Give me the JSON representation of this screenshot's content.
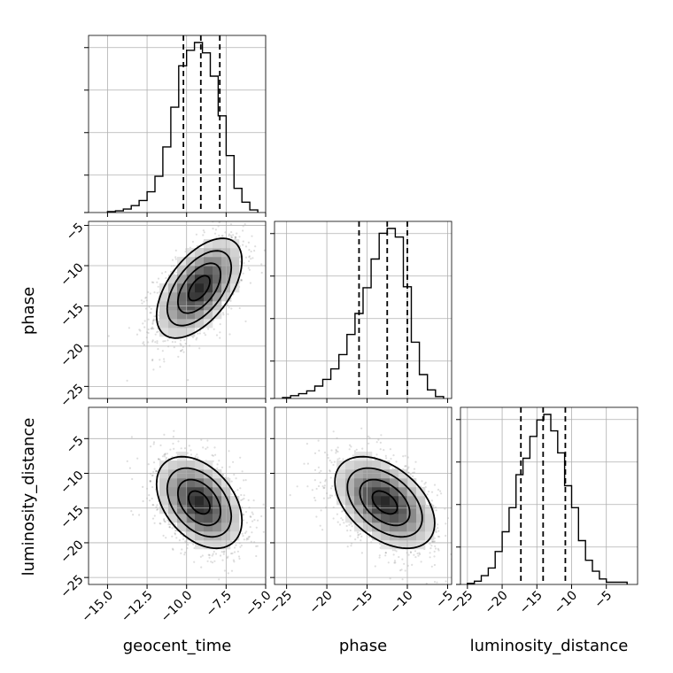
{
  "chart_data": {
    "type": "corner",
    "parameters": [
      "geocent_time",
      "phase",
      "luminosity_distance"
    ],
    "ranges": {
      "geocent_time": [
        -16.2,
        -5.0
      ],
      "phase": [
        -26.5,
        -4.5
      ],
      "luminosity_distance": [
        -26.0,
        -0.5
      ]
    },
    "ticks": {
      "geocent_time": [
        "-15.0",
        "-12.5",
        "-10.0",
        "-7.5",
        "-5.0"
      ],
      "phase": [
        "-25",
        "-20",
        "-15",
        "-10",
        "-5"
      ],
      "luminosity_distance": [
        "-25",
        "-20",
        "-15",
        "-10",
        "-5"
      ]
    },
    "quantiles": {
      "geocent_time": [
        -10.2,
        -9.1,
        -7.9
      ],
      "phase": [
        -16.0,
        -12.5,
        -10.0
      ],
      "luminosity_distance": [
        -17.3,
        -14.1,
        -10.9
      ]
    },
    "histograms": {
      "geocent_time": {
        "edges": [
          -15.0,
          -14.5,
          -14.0,
          -13.5,
          -13.0,
          -12.5,
          -12.0,
          -11.5,
          -11.0,
          -10.5,
          -10.0,
          -9.5,
          -9.0,
          -8.5,
          -8.0,
          -7.5,
          -7.0,
          -6.5,
          -6.0,
          -5.5
        ],
        "counts": [
          1,
          2,
          4,
          8,
          14,
          24,
          42,
          76,
          122,
          170,
          188,
          197,
          185,
          158,
          112,
          66,
          28,
          12,
          3
        ]
      },
      "phase": {
        "edges": [
          -25.5,
          -24.5,
          -23.5,
          -22.5,
          -21.5,
          -20.5,
          -19.5,
          -18.5,
          -17.5,
          -16.5,
          -15.5,
          -14.5,
          -13.5,
          -12.5,
          -11.5,
          -10.5,
          -9.5,
          -8.5,
          -7.5,
          -6.5,
          -5.5
        ],
        "counts": [
          1,
          3,
          5,
          8,
          13,
          20,
          31,
          46,
          67,
          89,
          116,
          146,
          173,
          178,
          169,
          117,
          59,
          25,
          9,
          2
        ]
      },
      "luminosity_distance": {
        "edges": [
          -25.0,
          -24.0,
          -23.0,
          -22.0,
          -21.0,
          -20.0,
          -19.0,
          -18.0,
          -17.0,
          -16.0,
          -15.0,
          -14.0,
          -13.0,
          -12.0,
          -11.0,
          -10.0,
          -9.0,
          -8.0,
          -7.0,
          -6.0,
          -5.0,
          -4.0,
          -2.0
        ],
        "counts": [
          1,
          3,
          8,
          15,
          30,
          48,
          70,
          100,
          115,
          135,
          150,
          155,
          140,
          120,
          90,
          70,
          40,
          22,
          12,
          5,
          2,
          2
        ]
      }
    },
    "pairs": [
      {
        "x": "geocent_time",
        "y": "phase",
        "x_mean": -9.2,
        "y_mean": -12.8,
        "x_sd": 1.35,
        "y_sd": 3.1,
        "corr": 0.55
      },
      {
        "x": "geocent_time",
        "y": "luminosity_distance",
        "x_mean": -9.2,
        "y_mean": -14.2,
        "x_sd": 1.35,
        "y_sd": 3.3,
        "corr": -0.4
      },
      {
        "x": "phase",
        "y": "luminosity_distance",
        "x_mean": -12.8,
        "y_mean": -14.2,
        "x_sd": 3.1,
        "y_sd": 3.3,
        "corr": -0.45
      }
    ],
    "contour_levels_sigma": [
      0.5,
      1.0,
      1.5,
      2.0
    ],
    "grid": true
  }
}
